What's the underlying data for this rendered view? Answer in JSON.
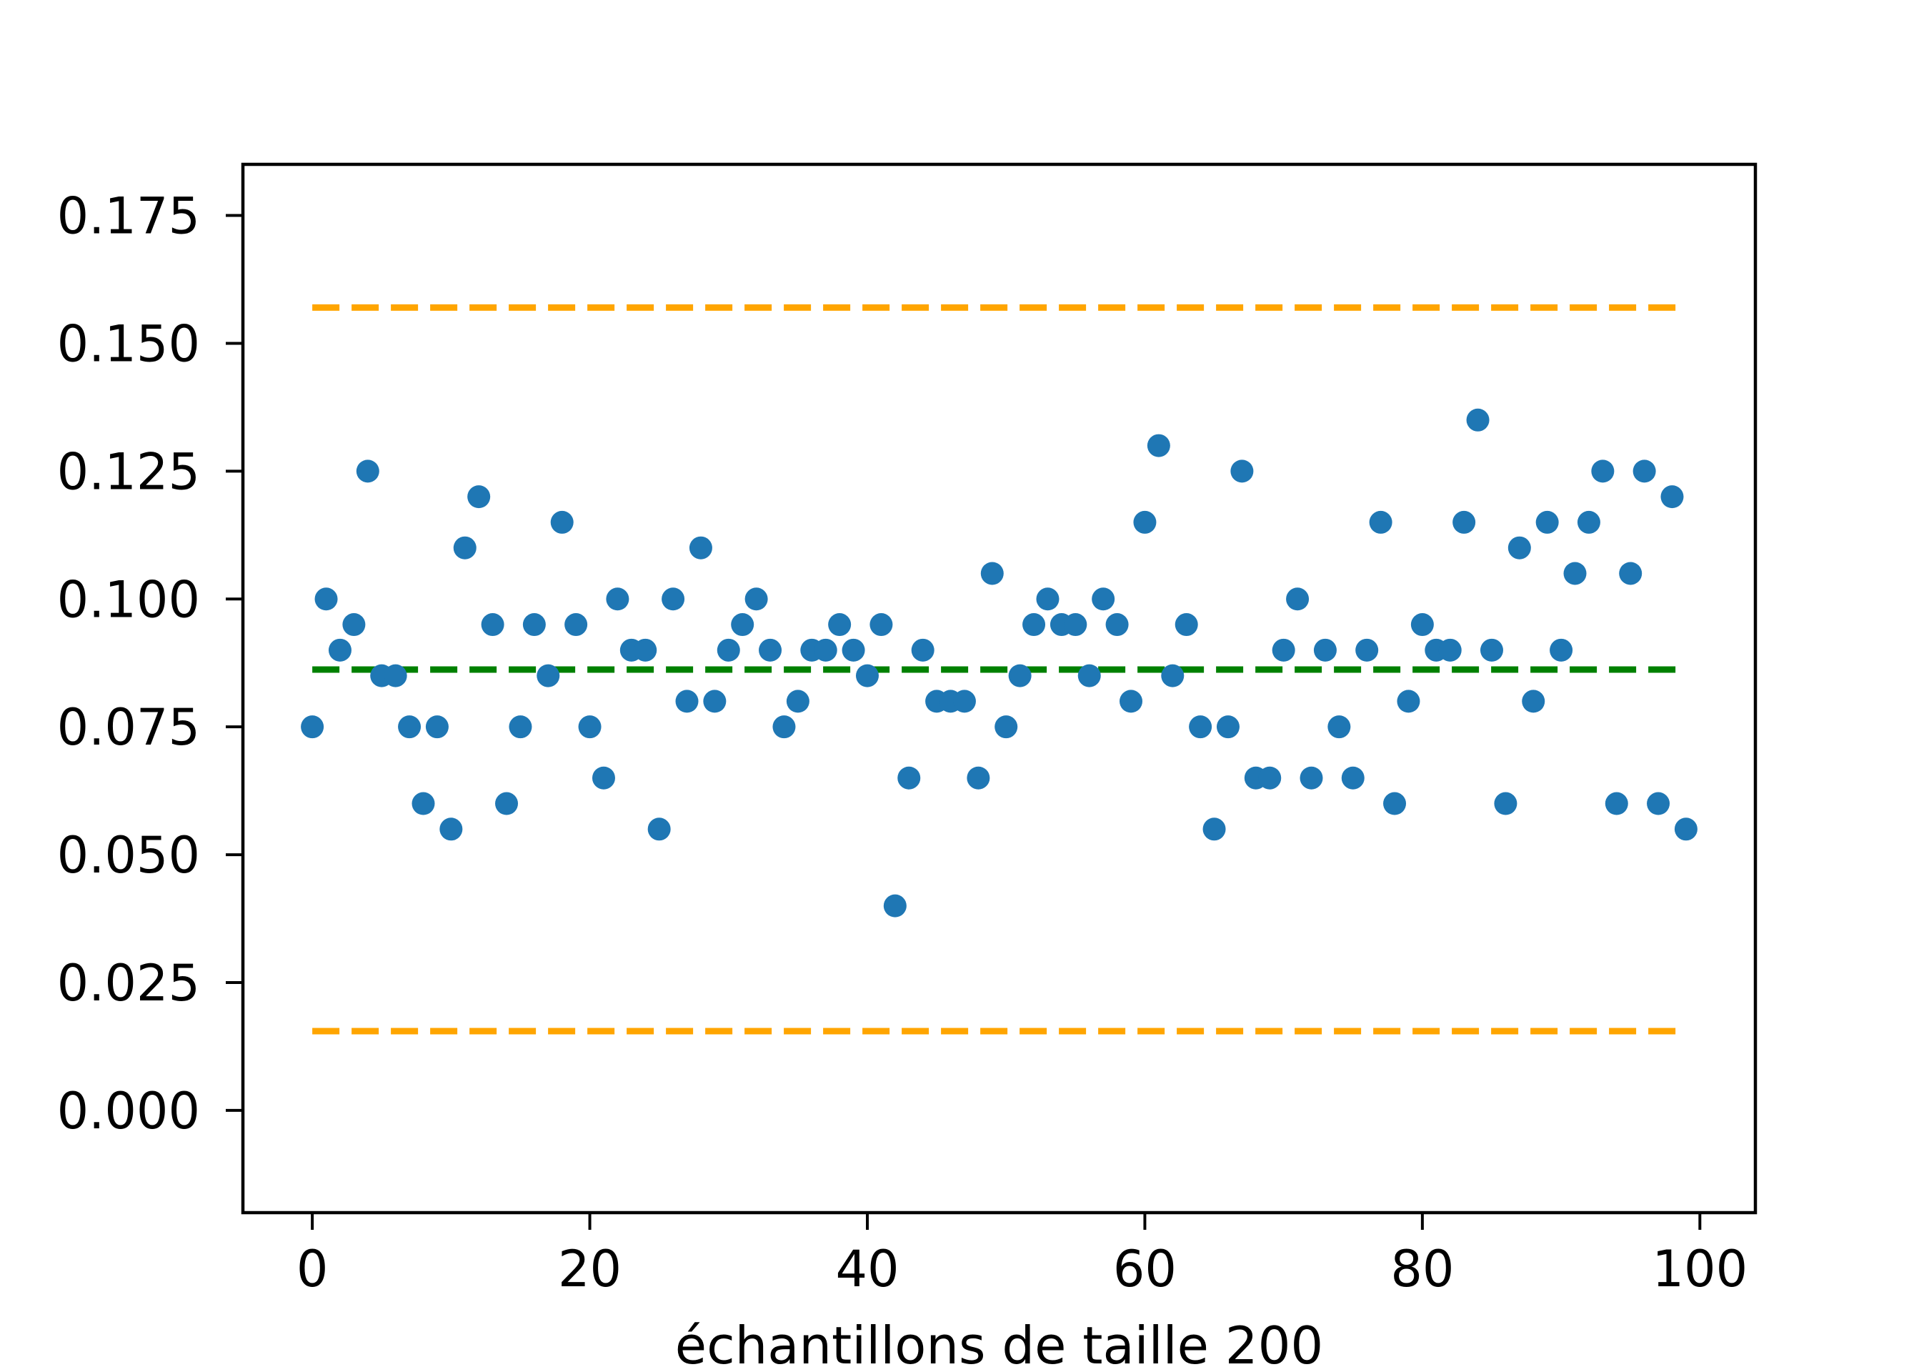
{
  "chart_data": {
    "type": "scatter",
    "title": "",
    "xlabel": "échantillons de taille 200",
    "ylabel": "",
    "xlim": [
      -5,
      104
    ],
    "ylim": [
      -0.02,
      0.185
    ],
    "x_ticks": [
      0,
      20,
      40,
      60,
      80,
      100
    ],
    "x_tick_labels": [
      "0",
      "20",
      "40",
      "60",
      "80",
      "100"
    ],
    "y_ticks": [
      0.0,
      0.025,
      0.05,
      0.075,
      0.1,
      0.125,
      0.15,
      0.175
    ],
    "y_tick_labels": [
      "0.000",
      "0.025",
      "0.050",
      "0.075",
      "0.100",
      "0.125",
      "0.150",
      "0.175"
    ],
    "grid": false,
    "colors": {
      "points": "#1f77b4",
      "mean_line": "#008000",
      "bounds": "#ffa500"
    },
    "reference_lines": [
      {
        "role": "upper-bound",
        "y": 0.157,
        "x_start": 0,
        "x_end": 99,
        "style": "dashed",
        "color": "#ffa500"
      },
      {
        "role": "mean",
        "y": 0.0862,
        "x_start": 0,
        "x_end": 99,
        "style": "dashed",
        "color": "#008000"
      },
      {
        "role": "lower-bound",
        "y": 0.0155,
        "x_start": 0,
        "x_end": 99,
        "style": "dashed",
        "color": "#ffa500"
      }
    ],
    "series": [
      {
        "x": [
          0,
          1,
          2,
          3,
          4,
          5,
          6,
          7,
          8,
          9,
          10,
          11,
          12,
          13,
          14,
          15,
          16,
          17,
          18,
          19,
          20,
          21,
          22,
          23,
          24,
          25,
          26,
          27,
          28,
          29,
          30,
          31,
          32,
          33,
          34,
          35,
          36,
          37,
          38,
          39,
          40,
          41,
          42,
          43,
          44,
          45,
          46,
          47,
          48,
          49,
          50,
          51,
          52,
          53,
          54,
          55,
          56,
          57,
          58,
          59,
          60,
          61,
          62,
          63,
          64,
          65,
          66,
          67,
          68,
          69,
          70,
          71,
          72,
          73,
          74,
          75,
          76,
          77,
          78,
          79,
          80,
          81,
          82,
          83,
          84,
          85,
          86,
          87,
          88,
          89,
          90,
          91,
          92,
          93,
          94,
          95,
          96,
          97,
          98,
          99
        ],
        "values": [
          0.075,
          0.1,
          0.09,
          0.095,
          0.125,
          0.085,
          0.085,
          0.075,
          0.06,
          0.075,
          0.055,
          0.11,
          0.12,
          0.095,
          0.06,
          0.075,
          0.095,
          0.085,
          0.115,
          0.095,
          0.075,
          0.065,
          0.1,
          0.09,
          0.09,
          0.055,
          0.1,
          0.08,
          0.11,
          0.08,
          0.09,
          0.095,
          0.1,
          0.09,
          0.075,
          0.08,
          0.09,
          0.09,
          0.095,
          0.09,
          0.085,
          0.095,
          0.04,
          0.065,
          0.09,
          0.08,
          0.08,
          0.08,
          0.065,
          0.105,
          0.075,
          0.085,
          0.095,
          0.1,
          0.095,
          0.095,
          0.085,
          0.1,
          0.095,
          0.08,
          0.115,
          0.13,
          0.085,
          0.095,
          0.075,
          0.055,
          0.075,
          0.125,
          0.065,
          0.065,
          0.09,
          0.1,
          0.065,
          0.09,
          0.075,
          0.065,
          0.09,
          0.115,
          0.06,
          0.08,
          0.095,
          0.09,
          0.09,
          0.115,
          0.135,
          0.09,
          0.06,
          0.11,
          0.08,
          0.115,
          0.09,
          0.105,
          0.115,
          0.125,
          0.06,
          0.105,
          0.125,
          0.06,
          0.12,
          0.055
        ]
      }
    ]
  }
}
